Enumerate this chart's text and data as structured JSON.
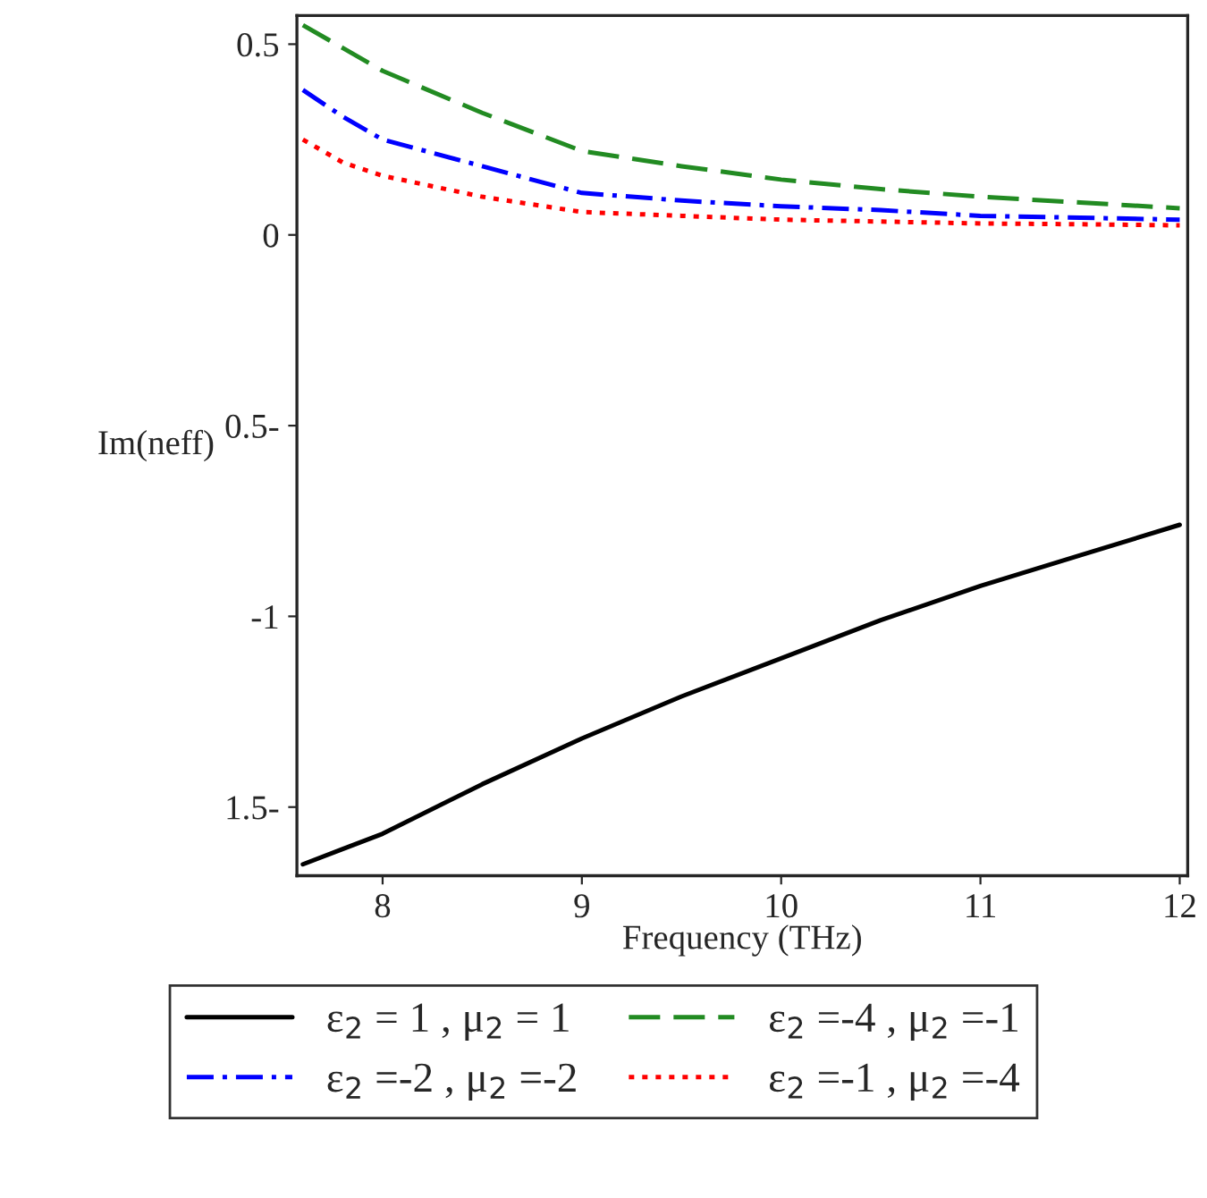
{
  "chart_data": {
    "type": "line",
    "xlabel": "Frequency (THz)",
    "ylabel": "Im(neff)",
    "xlim": [
      7.57,
      12.04
    ],
    "xticks": [
      8,
      9,
      10,
      11,
      12
    ],
    "ylim": [
      -1.68,
      0.575
    ],
    "yticks": [
      0.5,
      0,
      {
        "value": -0.5,
        "label": "0.5-"
      },
      -1,
      {
        "value": -1.5,
        "label": "1.5-"
      }
    ],
    "x": [
      7.6,
      7.8,
      8,
      8.5,
      9,
      9.5,
      10,
      10.5,
      11,
      11.5,
      12
    ],
    "series": [
      {
        "name": "ε$_{2}$ = 1 , μ$_{2}$ = 1",
        "color": "#000000",
        "line_style": "solid",
        "values": [
          -1.65,
          -1.61,
          -1.57,
          -1.44,
          -1.32,
          -1.21,
          -1.11,
          -1.01,
          -0.92,
          -0.84,
          -0.76
        ]
      },
      {
        "name": "ε$_{2}$ =-4 , μ$_{2}$ =-1",
        "color": "#228b22",
        "line_style": "dashed",
        "values": [
          0.55,
          0.49,
          0.43,
          0.32,
          0.22,
          0.18,
          0.145,
          0.12,
          0.1,
          0.085,
          0.07
        ]
      },
      {
        "name": "ε$_{2}$ =-2 , μ$_{2}$ =-2",
        "color": "#0000ff",
        "line_style": "dashdot",
        "values": [
          0.38,
          0.31,
          0.25,
          0.18,
          0.11,
          0.09,
          0.075,
          0.065,
          0.05,
          0.045,
          0.04
        ]
      },
      {
        "name": "ε$_{2}$ =-1 , μ$_{2}$ =-4",
        "color": "#ff0000",
        "line_style": "dotted",
        "values": [
          0.25,
          0.19,
          0.155,
          0.1,
          0.06,
          0.05,
          0.04,
          0.035,
          0.03,
          0.028,
          0.025
        ]
      }
    ],
    "legend": "bottom",
    "grid": false
  }
}
